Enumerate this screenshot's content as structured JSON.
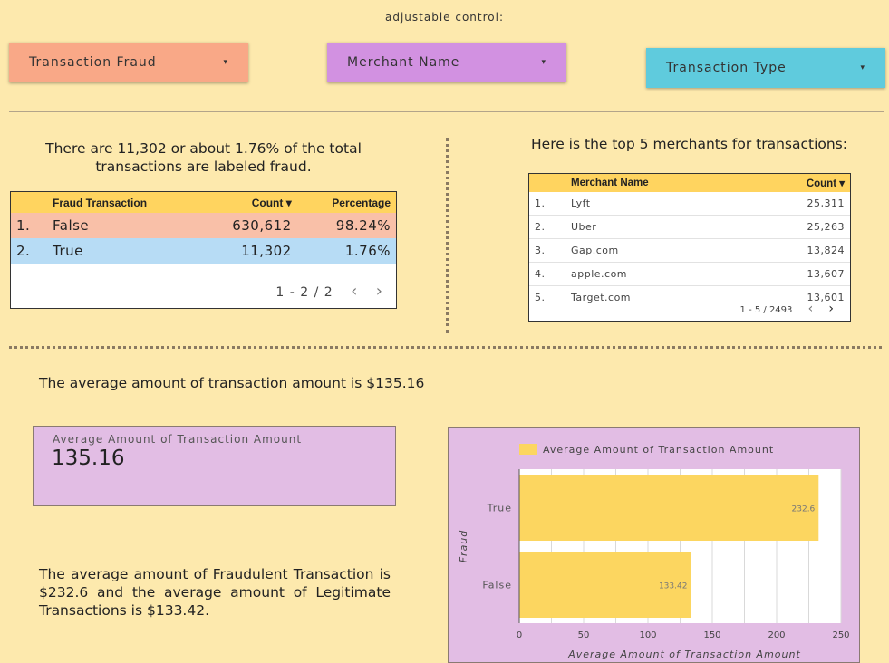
{
  "controls": {
    "title": "adjustable control:",
    "transaction_fraud": "Transaction Fraud",
    "merchant_name": "Merchant Name",
    "transaction_type": "Transaction Type",
    "caret": "▾",
    "colors": {
      "transaction_fraud": "#f9a887",
      "merchant_name": "#d291e1",
      "transaction_type": "#5fcbdd"
    }
  },
  "fraud_section": {
    "caption_line1": "There are 11,302 or about 1.76% of the total",
    "caption_line2": "transactions are labeled fraud.",
    "table": {
      "headers": [
        "Fraud Transaction",
        "Count ▾",
        "Percentage"
      ],
      "rows": [
        {
          "idx": "1.",
          "label": "False",
          "count": "630,612",
          "pct": "98.24%"
        },
        {
          "idx": "2.",
          "label": "True",
          "count": "11,302",
          "pct": "1.76%"
        }
      ],
      "pager": "1 - 2 / 2",
      "prev": "‹",
      "next": "›"
    }
  },
  "merchant_section": {
    "caption": "Here is the top 5 merchants for transactions:",
    "table": {
      "headers": [
        "Merchant Name",
        "Count ▾"
      ],
      "rows": [
        {
          "idx": "1.",
          "name": "Lyft",
          "count": "25,311"
        },
        {
          "idx": "2.",
          "name": "Uber",
          "count": "25,263"
        },
        {
          "idx": "3.",
          "name": "Gap.com",
          "count": "13,824"
        },
        {
          "idx": "4.",
          "name": "apple.com",
          "count": "13,607"
        },
        {
          "idx": "5.",
          "name": "Target.com",
          "count": "13,601"
        }
      ],
      "pager": "1 - 5 / 2493",
      "prev": "‹",
      "next": "›"
    }
  },
  "average_section": {
    "headline": "The average amount of transaction amount is $135.16",
    "scorecard_label": "Average Amount of Transaction Amount",
    "scorecard_value": "135.16",
    "paragraph": "The average amount of Fraudulent Transaction is $232.6 and the average amount of Legitimate Transactions is $133.42."
  },
  "chart_data": {
    "type": "bar",
    "orientation": "horizontal",
    "categories": [
      "True",
      "False"
    ],
    "series": [
      {
        "name": "Average Amount of Transaction Amount",
        "values": [
          232.6,
          133.42
        ]
      }
    ],
    "data_labels": [
      "232.6",
      "133.42"
    ],
    "xlabel": "Average Amount of Transaction Amount",
    "ylabel": "Fraud",
    "xlim": [
      0,
      250
    ],
    "xticks": [
      "0",
      "50",
      "100",
      "150",
      "200",
      "250"
    ],
    "grid": true,
    "legend_position": "top",
    "bar_color": "#fcd660"
  }
}
